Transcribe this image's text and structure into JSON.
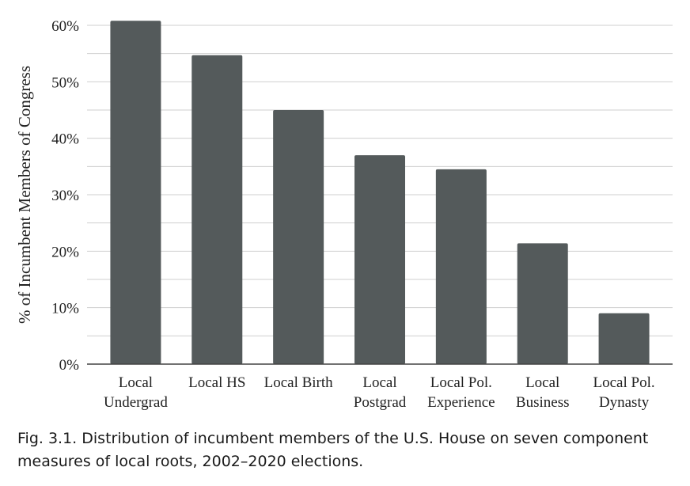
{
  "chart_data": {
    "type": "bar",
    "categories": [
      [
        "Local",
        "Undergrad"
      ],
      [
        "Local HS"
      ],
      [
        "Local Birth"
      ],
      [
        "Local",
        "Postgrad"
      ],
      [
        "Local Pol.",
        "Experience"
      ],
      [
        "Local",
        "Business"
      ],
      [
        "Local Pol.",
        "Dynasty"
      ]
    ],
    "values": [
      60.8,
      54.7,
      45.0,
      37.0,
      34.5,
      21.4,
      9.0
    ],
    "ylabel": "% of Incumbent Members of Congress",
    "xlabel": "",
    "ylim": [
      0,
      60
    ],
    "yticks": [
      "0%",
      "10%",
      "20%",
      "30%",
      "40%",
      "50%",
      "60%"
    ],
    "grid": true,
    "bar_color": "#545a5b",
    "grid_color": "#cfcfcf"
  },
  "caption": {
    "line1": "Fig. 3.1. Distribution of incumbent members of the U.S. House on seven component",
    "line2": "measures of local roots, 2002–2020 elections."
  }
}
